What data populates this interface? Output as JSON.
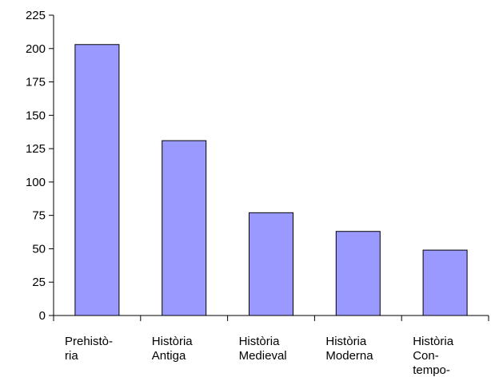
{
  "chart_data": {
    "type": "bar",
    "categories": [
      [
        "Prehistò-",
        "ria"
      ],
      [
        "Història",
        "Antiga"
      ],
      [
        "Història",
        "Medieval"
      ],
      [
        "Història",
        "Moderna"
      ],
      [
        "Història",
        "Con-",
        "tempo-"
      ]
    ],
    "values": [
      203,
      131,
      77,
      63,
      49
    ],
    "ylim": [
      0,
      225
    ],
    "yticks": [
      "0",
      "25",
      "50",
      "75",
      "100",
      "125",
      "150",
      "175",
      "200",
      "225"
    ],
    "grid": false,
    "legend": "none",
    "bar_color": "#9999ff",
    "bar_edge_color": "#000000"
  }
}
